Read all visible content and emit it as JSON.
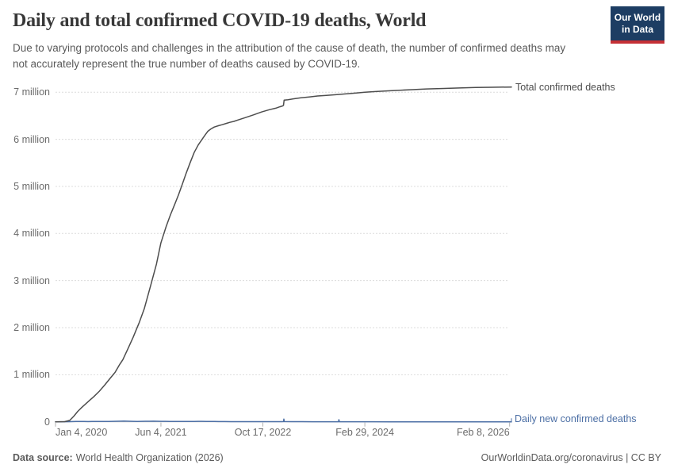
{
  "header": {
    "title": "Daily and total confirmed COVID-19 deaths, World",
    "subtitle": "Due to varying protocols and challenges in the attribution of the cause of death, the number of confirmed deaths may not accurately represent the true number of deaths caused by COVID-19.",
    "logo": {
      "line1": "Our World",
      "line2": "in Data"
    }
  },
  "footer": {
    "source_label": "Data source:",
    "source_value": "World Health Organization (2026)",
    "credit": "OurWorldinData.org/coronavirus | CC BY"
  },
  "colors": {
    "logo_bg": "#1d3d63",
    "logo_stripe": "#c52f35",
    "total_line": "#4d4d4d",
    "daily_line": "#4c6fa5",
    "gridline": "#dcdcdc",
    "axis_line": "#c8c8c8",
    "tick_mark": "#b3b3b3"
  },
  "chart_data": {
    "type": "line",
    "title": "Daily and total confirmed COVID-19 deaths, World",
    "xlabel": "",
    "ylabel": "",
    "unit": "deaths (millions)",
    "ylim": [
      0,
      7.4
    ],
    "grid": "dashed horizontal",
    "legend_position": "line-end labels",
    "y_ticks": [
      {
        "value": 0,
        "label": "0"
      },
      {
        "value": 1,
        "label": "1 million"
      },
      {
        "value": 2,
        "label": "2 million"
      },
      {
        "value": 3,
        "label": "3 million"
      },
      {
        "value": 4,
        "label": "4 million"
      },
      {
        "value": 5,
        "label": "5 million"
      },
      {
        "value": 6,
        "label": "6 million"
      },
      {
        "value": 7,
        "label": "7 million"
      }
    ],
    "x_axis": {
      "x0_date": "Jan 4, 2020",
      "x_unit": "days since Jan 4, 2020",
      "day_max": 2236,
      "ticks": [
        {
          "day": 0,
          "label": "Jan 4, 2020"
        },
        {
          "day": 517,
          "label": "Jun 4, 2021"
        },
        {
          "day": 1017,
          "label": "Oct 17, 2022"
        },
        {
          "day": 1517,
          "label": "Feb 29, 2024"
        },
        {
          "day": 2227,
          "label": "Feb 8, 2026"
        }
      ]
    },
    "series": [
      {
        "id": "total-confirmed-deaths",
        "name": "Total confirmed deaths",
        "color": "#4d4d4d",
        "points": [
          [
            0,
            0
          ],
          [
            45,
            0.004
          ],
          [
            70,
            0.03
          ],
          [
            90,
            0.12
          ],
          [
            109,
            0.22
          ],
          [
            130,
            0.31
          ],
          [
            148,
            0.38
          ],
          [
            168,
            0.46
          ],
          [
            187,
            0.53
          ],
          [
            215,
            0.65
          ],
          [
            241,
            0.78
          ],
          [
            267,
            0.92
          ],
          [
            292,
            1.05
          ],
          [
            315,
            1.22
          ],
          [
            330,
            1.32
          ],
          [
            355,
            1.55
          ],
          [
            381,
            1.8
          ],
          [
            410,
            2.1
          ],
          [
            435,
            2.4
          ],
          [
            467,
            2.9
          ],
          [
            495,
            3.35
          ],
          [
            517,
            3.8
          ],
          [
            543,
            4.15
          ],
          [
            564,
            4.4
          ],
          [
            583,
            4.6
          ],
          [
            603,
            4.82
          ],
          [
            622,
            5.05
          ],
          [
            641,
            5.28
          ],
          [
            660,
            5.5
          ],
          [
            680,
            5.72
          ],
          [
            700,
            5.88
          ],
          [
            719,
            6.0
          ],
          [
            735,
            6.1
          ],
          [
            747,
            6.17
          ],
          [
            762,
            6.22
          ],
          [
            778,
            6.26
          ],
          [
            800,
            6.29
          ],
          [
            817,
            6.31
          ],
          [
            840,
            6.34
          ],
          [
            855,
            6.36
          ],
          [
            875,
            6.38
          ],
          [
            894,
            6.41
          ],
          [
            930,
            6.46
          ],
          [
            972,
            6.52
          ],
          [
            1010,
            6.58
          ],
          [
            1050,
            6.63
          ],
          [
            1080,
            6.66
          ],
          [
            1100,
            6.69
          ],
          [
            1114,
            6.71
          ],
          [
            1118,
            6.72
          ],
          [
            1121,
            6.83
          ],
          [
            1140,
            6.84
          ],
          [
            1166,
            6.86
          ],
          [
            1200,
            6.88
          ],
          [
            1244,
            6.9
          ],
          [
            1285,
            6.92
          ],
          [
            1322,
            6.93
          ],
          [
            1380,
            6.95
          ],
          [
            1439,
            6.97
          ],
          [
            1480,
            6.985
          ],
          [
            1517,
            7.0
          ],
          [
            1570,
            7.015
          ],
          [
            1633,
            7.03
          ],
          [
            1700,
            7.045
          ],
          [
            1750,
            7.055
          ],
          [
            1820,
            7.07
          ],
          [
            1905,
            7.08
          ],
          [
            1980,
            7.09
          ],
          [
            2061,
            7.1
          ],
          [
            2140,
            7.105
          ],
          [
            2236,
            7.11
          ]
        ]
      },
      {
        "id": "daily-new-confirmed-deaths",
        "name": "Daily new confirmed deaths",
        "color": "#4c6fa5",
        "points": [
          [
            0,
            0.0003
          ],
          [
            40,
            0.002
          ],
          [
            70,
            0.004
          ],
          [
            100,
            0.006
          ],
          [
            120,
            0.0065
          ],
          [
            140,
            0.006
          ],
          [
            160,
            0.0055
          ],
          [
            180,
            0.006
          ],
          [
            200,
            0.0065
          ],
          [
            220,
            0.007
          ],
          [
            240,
            0.0075
          ],
          [
            260,
            0.009
          ],
          [
            280,
            0.0105
          ],
          [
            300,
            0.0125
          ],
          [
            320,
            0.014
          ],
          [
            335,
            0.0145
          ],
          [
            350,
            0.013
          ],
          [
            365,
            0.0115
          ],
          [
            380,
            0.0095
          ],
          [
            400,
            0.009
          ],
          [
            420,
            0.0105
          ],
          [
            440,
            0.012
          ],
          [
            460,
            0.0125
          ],
          [
            480,
            0.013
          ],
          [
            500,
            0.0115
          ],
          [
            520,
            0.0105
          ],
          [
            540,
            0.0095
          ],
          [
            560,
            0.0085
          ],
          [
            580,
            0.008
          ],
          [
            600,
            0.008
          ],
          [
            620,
            0.0075
          ],
          [
            640,
            0.008
          ],
          [
            660,
            0.0085
          ],
          [
            680,
            0.009
          ],
          [
            700,
            0.0095
          ],
          [
            719,
            0.0105
          ],
          [
            740,
            0.009
          ],
          [
            760,
            0.0075
          ],
          [
            780,
            0.0065
          ],
          [
            800,
            0.0058
          ],
          [
            830,
            0.005
          ],
          [
            860,
            0.0042
          ],
          [
            900,
            0.0036
          ],
          [
            950,
            0.0032
          ],
          [
            1000,
            0.003
          ],
          [
            1050,
            0.0033
          ],
          [
            1090,
            0.0038
          ],
          [
            1110,
            0.0042
          ],
          [
            1118,
            0.005
          ],
          [
            1120,
            0.058
          ],
          [
            1122,
            0.0045
          ],
          [
            1160,
            0.0032
          ],
          [
            1210,
            0.0026
          ],
          [
            1260,
            0.0022
          ],
          [
            1310,
            0.002
          ],
          [
            1360,
            0.0019
          ],
          [
            1388,
            0.0018
          ],
          [
            1390,
            0.045
          ],
          [
            1392,
            0.0018
          ],
          [
            1440,
            0.0014
          ],
          [
            1500,
            0.0011
          ],
          [
            1560,
            0.0009
          ],
          [
            1640,
            0.0008
          ],
          [
            1720,
            0.0007
          ],
          [
            1820,
            0.0006
          ],
          [
            1920,
            0.0005
          ],
          [
            2020,
            0.0004
          ],
          [
            2120,
            0.0004
          ],
          [
            2236,
            0.0004
          ]
        ]
      }
    ]
  }
}
